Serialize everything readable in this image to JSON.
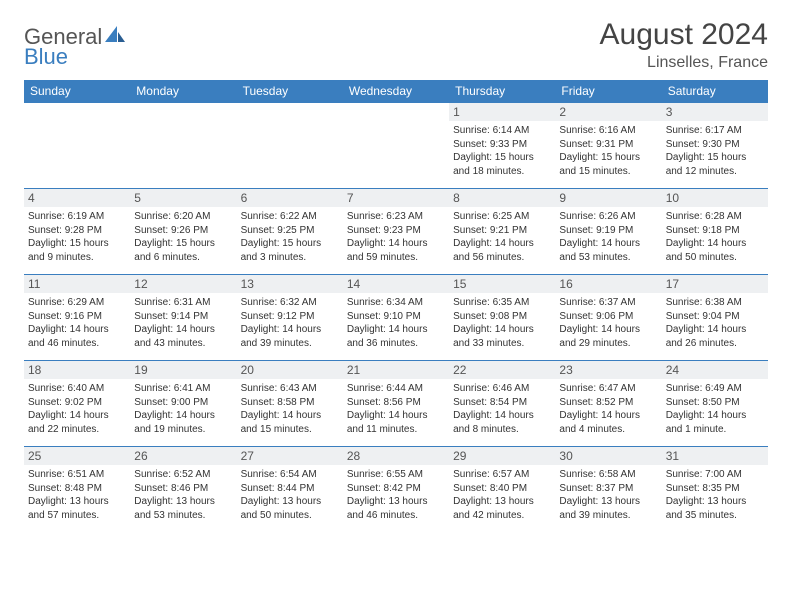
{
  "brand": {
    "part1": "General",
    "part2": "Blue"
  },
  "title": "August 2024",
  "location": "Linselles, France",
  "colors": {
    "header_bg": "#3a7ebf",
    "header_text": "#ffffff",
    "daynum_bg": "#eef0f2",
    "border": "#3a7ebf",
    "text": "#333333",
    "page_bg": "#ffffff"
  },
  "weekdays": [
    "Sunday",
    "Monday",
    "Tuesday",
    "Wednesday",
    "Thursday",
    "Friday",
    "Saturday"
  ],
  "weeks": [
    [
      null,
      null,
      null,
      null,
      {
        "n": "1",
        "sr": "Sunrise: 6:14 AM",
        "ss": "Sunset: 9:33 PM",
        "d1": "Daylight: 15 hours",
        "d2": "and 18 minutes."
      },
      {
        "n": "2",
        "sr": "Sunrise: 6:16 AM",
        "ss": "Sunset: 9:31 PM",
        "d1": "Daylight: 15 hours",
        "d2": "and 15 minutes."
      },
      {
        "n": "3",
        "sr": "Sunrise: 6:17 AM",
        "ss": "Sunset: 9:30 PM",
        "d1": "Daylight: 15 hours",
        "d2": "and 12 minutes."
      }
    ],
    [
      {
        "n": "4",
        "sr": "Sunrise: 6:19 AM",
        "ss": "Sunset: 9:28 PM",
        "d1": "Daylight: 15 hours",
        "d2": "and 9 minutes."
      },
      {
        "n": "5",
        "sr": "Sunrise: 6:20 AM",
        "ss": "Sunset: 9:26 PM",
        "d1": "Daylight: 15 hours",
        "d2": "and 6 minutes."
      },
      {
        "n": "6",
        "sr": "Sunrise: 6:22 AM",
        "ss": "Sunset: 9:25 PM",
        "d1": "Daylight: 15 hours",
        "d2": "and 3 minutes."
      },
      {
        "n": "7",
        "sr": "Sunrise: 6:23 AM",
        "ss": "Sunset: 9:23 PM",
        "d1": "Daylight: 14 hours",
        "d2": "and 59 minutes."
      },
      {
        "n": "8",
        "sr": "Sunrise: 6:25 AM",
        "ss": "Sunset: 9:21 PM",
        "d1": "Daylight: 14 hours",
        "d2": "and 56 minutes."
      },
      {
        "n": "9",
        "sr": "Sunrise: 6:26 AM",
        "ss": "Sunset: 9:19 PM",
        "d1": "Daylight: 14 hours",
        "d2": "and 53 minutes."
      },
      {
        "n": "10",
        "sr": "Sunrise: 6:28 AM",
        "ss": "Sunset: 9:18 PM",
        "d1": "Daylight: 14 hours",
        "d2": "and 50 minutes."
      }
    ],
    [
      {
        "n": "11",
        "sr": "Sunrise: 6:29 AM",
        "ss": "Sunset: 9:16 PM",
        "d1": "Daylight: 14 hours",
        "d2": "and 46 minutes."
      },
      {
        "n": "12",
        "sr": "Sunrise: 6:31 AM",
        "ss": "Sunset: 9:14 PM",
        "d1": "Daylight: 14 hours",
        "d2": "and 43 minutes."
      },
      {
        "n": "13",
        "sr": "Sunrise: 6:32 AM",
        "ss": "Sunset: 9:12 PM",
        "d1": "Daylight: 14 hours",
        "d2": "and 39 minutes."
      },
      {
        "n": "14",
        "sr": "Sunrise: 6:34 AM",
        "ss": "Sunset: 9:10 PM",
        "d1": "Daylight: 14 hours",
        "d2": "and 36 minutes."
      },
      {
        "n": "15",
        "sr": "Sunrise: 6:35 AM",
        "ss": "Sunset: 9:08 PM",
        "d1": "Daylight: 14 hours",
        "d2": "and 33 minutes."
      },
      {
        "n": "16",
        "sr": "Sunrise: 6:37 AM",
        "ss": "Sunset: 9:06 PM",
        "d1": "Daylight: 14 hours",
        "d2": "and 29 minutes."
      },
      {
        "n": "17",
        "sr": "Sunrise: 6:38 AM",
        "ss": "Sunset: 9:04 PM",
        "d1": "Daylight: 14 hours",
        "d2": "and 26 minutes."
      }
    ],
    [
      {
        "n": "18",
        "sr": "Sunrise: 6:40 AM",
        "ss": "Sunset: 9:02 PM",
        "d1": "Daylight: 14 hours",
        "d2": "and 22 minutes."
      },
      {
        "n": "19",
        "sr": "Sunrise: 6:41 AM",
        "ss": "Sunset: 9:00 PM",
        "d1": "Daylight: 14 hours",
        "d2": "and 19 minutes."
      },
      {
        "n": "20",
        "sr": "Sunrise: 6:43 AM",
        "ss": "Sunset: 8:58 PM",
        "d1": "Daylight: 14 hours",
        "d2": "and 15 minutes."
      },
      {
        "n": "21",
        "sr": "Sunrise: 6:44 AM",
        "ss": "Sunset: 8:56 PM",
        "d1": "Daylight: 14 hours",
        "d2": "and 11 minutes."
      },
      {
        "n": "22",
        "sr": "Sunrise: 6:46 AM",
        "ss": "Sunset: 8:54 PM",
        "d1": "Daylight: 14 hours",
        "d2": "and 8 minutes."
      },
      {
        "n": "23",
        "sr": "Sunrise: 6:47 AM",
        "ss": "Sunset: 8:52 PM",
        "d1": "Daylight: 14 hours",
        "d2": "and 4 minutes."
      },
      {
        "n": "24",
        "sr": "Sunrise: 6:49 AM",
        "ss": "Sunset: 8:50 PM",
        "d1": "Daylight: 14 hours",
        "d2": "and 1 minute."
      }
    ],
    [
      {
        "n": "25",
        "sr": "Sunrise: 6:51 AM",
        "ss": "Sunset: 8:48 PM",
        "d1": "Daylight: 13 hours",
        "d2": "and 57 minutes."
      },
      {
        "n": "26",
        "sr": "Sunrise: 6:52 AM",
        "ss": "Sunset: 8:46 PM",
        "d1": "Daylight: 13 hours",
        "d2": "and 53 minutes."
      },
      {
        "n": "27",
        "sr": "Sunrise: 6:54 AM",
        "ss": "Sunset: 8:44 PM",
        "d1": "Daylight: 13 hours",
        "d2": "and 50 minutes."
      },
      {
        "n": "28",
        "sr": "Sunrise: 6:55 AM",
        "ss": "Sunset: 8:42 PM",
        "d1": "Daylight: 13 hours",
        "d2": "and 46 minutes."
      },
      {
        "n": "29",
        "sr": "Sunrise: 6:57 AM",
        "ss": "Sunset: 8:40 PM",
        "d1": "Daylight: 13 hours",
        "d2": "and 42 minutes."
      },
      {
        "n": "30",
        "sr": "Sunrise: 6:58 AM",
        "ss": "Sunset: 8:37 PM",
        "d1": "Daylight: 13 hours",
        "d2": "and 39 minutes."
      },
      {
        "n": "31",
        "sr": "Sunrise: 7:00 AM",
        "ss": "Sunset: 8:35 PM",
        "d1": "Daylight: 13 hours",
        "d2": "and 35 minutes."
      }
    ]
  ]
}
